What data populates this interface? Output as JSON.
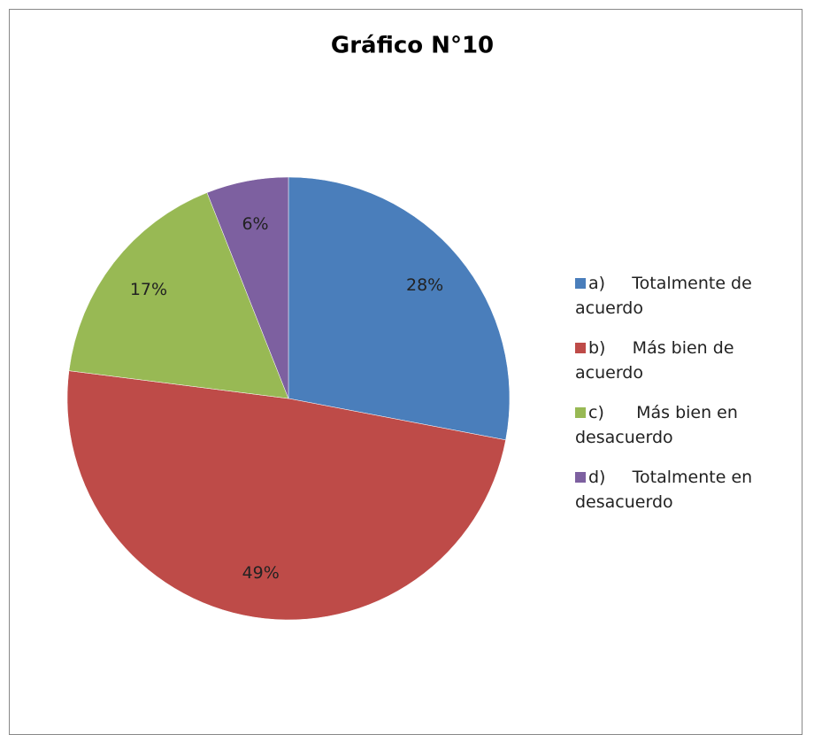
{
  "chart_data": {
    "type": "pie",
    "title": "Gráfico N°10",
    "categories": [
      "a)     Totalmente de acuerdo",
      "b)     Más bien de acuerdo",
      "c)      Más bien en desacuerdo",
      "d)     Totalmente en desacuerdo"
    ],
    "values": [
      28,
      49,
      17,
      6
    ],
    "value_labels": [
      "28%",
      "49%",
      "17%",
      "6%"
    ],
    "colors": [
      "#4a7ebb",
      "#be4b48",
      "#98b954",
      "#7d60a0"
    ],
    "legend": "right"
  }
}
